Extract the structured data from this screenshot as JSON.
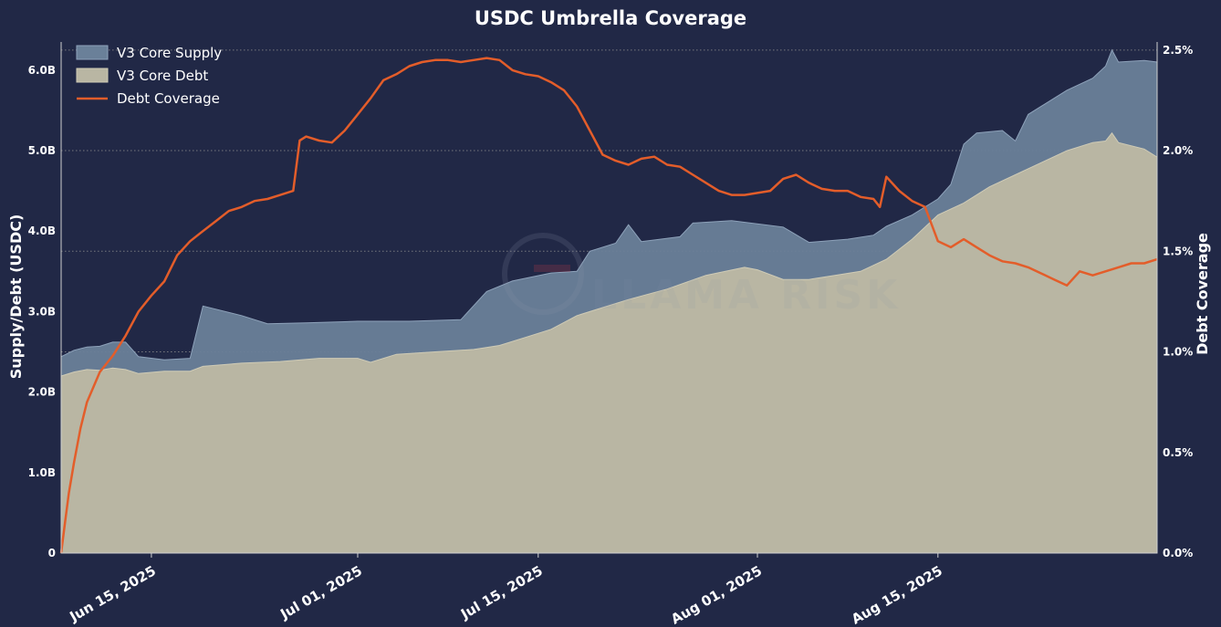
{
  "chart_data": {
    "type": "area",
    "title": "USDC Umbrella Coverage",
    "ylabel": "Supply/Debt (USDC)",
    "y2label": "Debt Coverage",
    "ylim": [
      0,
      6.35
    ],
    "y2lim": [
      0,
      2.54
    ],
    "xlim": [
      "2025-06-08",
      "2025-09-01"
    ],
    "yticks": [
      {
        "value": 0,
        "label": "0"
      },
      {
        "value": 1,
        "label": "1.0B"
      },
      {
        "value": 2,
        "label": "2.0B"
      },
      {
        "value": 3,
        "label": "3.0B"
      },
      {
        "value": 4,
        "label": "4.0B"
      },
      {
        "value": 5,
        "label": "5.0B"
      },
      {
        "value": 6,
        "label": "6.0B"
      }
    ],
    "y2ticks": [
      {
        "value": 0,
        "label": "0.0%"
      },
      {
        "value": 0.5,
        "label": "0.5%"
      },
      {
        "value": 1.0,
        "label": "1.0%"
      },
      {
        "value": 1.5,
        "label": "1.5%"
      },
      {
        "value": 2.0,
        "label": "2.0%"
      },
      {
        "value": 2.5,
        "label": "2.5%"
      }
    ],
    "xticks": [
      {
        "date": "2025-06-15",
        "label": "Jun 15, 2025"
      },
      {
        "date": "2025-07-01",
        "label": "Jul 01, 2025"
      },
      {
        "date": "2025-07-15",
        "label": "Jul 15, 2025"
      },
      {
        "date": "2025-08-01",
        "label": "Aug 01, 2025"
      },
      {
        "date": "2025-08-15",
        "label": "Aug 15, 2025"
      }
    ],
    "grid": "horizontal dotted (right axis)",
    "legend": "top-left",
    "colors": {
      "background": "#212846",
      "supply": "#6a8099",
      "debt": "#b9b6a3",
      "coverage": "#e35d2a"
    },
    "series": [
      {
        "name": "V3 Core Supply",
        "axis": "left",
        "style": "area",
        "points": [
          [
            "2025-06-08",
            2.44
          ],
          [
            "2025-06-09",
            2.52
          ],
          [
            "2025-06-10",
            2.56
          ],
          [
            "2025-06-11",
            2.57
          ],
          [
            "2025-06-12",
            2.62
          ],
          [
            "2025-06-13",
            2.62
          ],
          [
            "2025-06-14",
            2.44
          ],
          [
            "2025-06-16",
            2.4
          ],
          [
            "2025-06-18",
            2.42
          ],
          [
            "2025-06-19",
            3.07
          ],
          [
            "2025-06-22",
            2.95
          ],
          [
            "2025-06-24",
            2.85
          ],
          [
            "2025-06-27",
            2.86
          ],
          [
            "2025-07-01",
            2.88
          ],
          [
            "2025-07-05",
            2.88
          ],
          [
            "2025-07-09",
            2.9
          ],
          [
            "2025-07-11",
            3.25
          ],
          [
            "2025-07-13",
            3.38
          ],
          [
            "2025-07-16",
            3.48
          ],
          [
            "2025-07-18",
            3.5
          ],
          [
            "2025-07-19",
            3.75
          ],
          [
            "2025-07-21",
            3.85
          ],
          [
            "2025-07-22",
            4.08
          ],
          [
            "2025-07-23",
            3.87
          ],
          [
            "2025-07-26",
            3.93
          ],
          [
            "2025-07-27",
            4.1
          ],
          [
            "2025-07-30",
            4.13
          ],
          [
            "2025-08-03",
            4.05
          ],
          [
            "2025-08-05",
            3.86
          ],
          [
            "2025-08-08",
            3.9
          ],
          [
            "2025-08-10",
            3.95
          ],
          [
            "2025-08-11",
            4.06
          ],
          [
            "2025-08-13",
            4.2
          ],
          [
            "2025-08-15",
            4.4
          ],
          [
            "2025-08-16",
            4.58
          ],
          [
            "2025-08-17",
            5.08
          ],
          [
            "2025-08-18",
            5.22
          ],
          [
            "2025-08-20",
            5.25
          ],
          [
            "2025-08-21",
            5.12
          ],
          [
            "2025-08-22",
            5.45
          ],
          [
            "2025-08-23",
            5.55
          ],
          [
            "2025-08-25",
            5.75
          ],
          [
            "2025-08-27",
            5.9
          ],
          [
            "2025-08-28",
            6.05
          ],
          [
            "2025-08-28.5",
            6.25
          ],
          [
            "2025-08-29",
            6.1
          ],
          [
            "2025-08-31",
            6.12
          ],
          [
            "2025-09-01",
            6.1
          ]
        ]
      },
      {
        "name": "V3 Core Debt",
        "axis": "left",
        "style": "area",
        "points": [
          [
            "2025-06-08",
            2.2
          ],
          [
            "2025-06-09",
            2.25
          ],
          [
            "2025-06-10",
            2.28
          ],
          [
            "2025-06-11",
            2.27
          ],
          [
            "2025-06-12",
            2.3
          ],
          [
            "2025-06-13",
            2.28
          ],
          [
            "2025-06-14",
            2.23
          ],
          [
            "2025-06-16",
            2.26
          ],
          [
            "2025-06-18",
            2.26
          ],
          [
            "2025-06-19",
            2.32
          ],
          [
            "2025-06-22",
            2.36
          ],
          [
            "2025-06-25",
            2.38
          ],
          [
            "2025-06-28",
            2.42
          ],
          [
            "2025-07-01",
            2.42
          ],
          [
            "2025-07-02",
            2.37
          ],
          [
            "2025-07-04",
            2.47
          ],
          [
            "2025-07-07",
            2.5
          ],
          [
            "2025-07-10",
            2.53
          ],
          [
            "2025-07-12",
            2.58
          ],
          [
            "2025-07-14",
            2.68
          ],
          [
            "2025-07-16",
            2.78
          ],
          [
            "2025-07-18",
            2.95
          ],
          [
            "2025-07-20",
            3.05
          ],
          [
            "2025-07-22",
            3.15
          ],
          [
            "2025-07-25",
            3.28
          ],
          [
            "2025-07-28",
            3.45
          ],
          [
            "2025-07-31",
            3.55
          ],
          [
            "2025-08-01",
            3.52
          ],
          [
            "2025-08-03",
            3.4
          ],
          [
            "2025-08-05",
            3.4
          ],
          [
            "2025-08-07",
            3.45
          ],
          [
            "2025-08-09",
            3.5
          ],
          [
            "2025-08-11",
            3.65
          ],
          [
            "2025-08-13",
            3.9
          ],
          [
            "2025-08-15",
            4.2
          ],
          [
            "2025-08-17",
            4.35
          ],
          [
            "2025-08-19",
            4.55
          ],
          [
            "2025-08-21",
            4.7
          ],
          [
            "2025-08-23",
            4.85
          ],
          [
            "2025-08-25",
            5.0
          ],
          [
            "2025-08-27",
            5.1
          ],
          [
            "2025-08-28",
            5.12
          ],
          [
            "2025-08-28.5",
            5.22
          ],
          [
            "2025-08-29",
            5.1
          ],
          [
            "2025-08-31",
            5.02
          ],
          [
            "2025-09-01",
            4.92
          ]
        ]
      },
      {
        "name": "Debt Coverage",
        "axis": "right",
        "style": "line",
        "points": [
          [
            "2025-06-08",
            0.0
          ],
          [
            "2025-06-08.3",
            0.15
          ],
          [
            "2025-06-08.6",
            0.3
          ],
          [
            "2025-06-09",
            0.45
          ],
          [
            "2025-06-09.5",
            0.62
          ],
          [
            "2025-06-10",
            0.75
          ],
          [
            "2025-06-11",
            0.9
          ],
          [
            "2025-06-12",
            0.98
          ],
          [
            "2025-06-13",
            1.08
          ],
          [
            "2025-06-14",
            1.2
          ],
          [
            "2025-06-15",
            1.28
          ],
          [
            "2025-06-16",
            1.35
          ],
          [
            "2025-06-17",
            1.48
          ],
          [
            "2025-06-18",
            1.55
          ],
          [
            "2025-06-19",
            1.6
          ],
          [
            "2025-06-20",
            1.65
          ],
          [
            "2025-06-21",
            1.7
          ],
          [
            "2025-06-22",
            1.72
          ],
          [
            "2025-06-23",
            1.75
          ],
          [
            "2025-06-24",
            1.76
          ],
          [
            "2025-06-25",
            1.78
          ],
          [
            "2025-06-26",
            1.8
          ],
          [
            "2025-06-26.5",
            2.05
          ],
          [
            "2025-06-27",
            2.07
          ],
          [
            "2025-06-28",
            2.05
          ],
          [
            "2025-06-29",
            2.04
          ],
          [
            "2025-06-30",
            2.1
          ],
          [
            "2025-07-01",
            2.18
          ],
          [
            "2025-07-02",
            2.26
          ],
          [
            "2025-07-03",
            2.35
          ],
          [
            "2025-07-04",
            2.38
          ],
          [
            "2025-07-05",
            2.42
          ],
          [
            "2025-07-06",
            2.44
          ],
          [
            "2025-07-07",
            2.45
          ],
          [
            "2025-07-08",
            2.45
          ],
          [
            "2025-07-09",
            2.44
          ],
          [
            "2025-07-10",
            2.45
          ],
          [
            "2025-07-11",
            2.46
          ],
          [
            "2025-07-12",
            2.45
          ],
          [
            "2025-07-13",
            2.4
          ],
          [
            "2025-07-14",
            2.38
          ],
          [
            "2025-07-15",
            2.37
          ],
          [
            "2025-07-16",
            2.34
          ],
          [
            "2025-07-17",
            2.3
          ],
          [
            "2025-07-18",
            2.22
          ],
          [
            "2025-07-19",
            2.1
          ],
          [
            "2025-07-20",
            1.98
          ],
          [
            "2025-07-21",
            1.95
          ],
          [
            "2025-07-22",
            1.93
          ],
          [
            "2025-07-23",
            1.96
          ],
          [
            "2025-07-24",
            1.97
          ],
          [
            "2025-07-25",
            1.93
          ],
          [
            "2025-07-26",
            1.92
          ],
          [
            "2025-07-27",
            1.88
          ],
          [
            "2025-07-28",
            1.84
          ],
          [
            "2025-07-29",
            1.8
          ],
          [
            "2025-07-30",
            1.78
          ],
          [
            "2025-07-31",
            1.78
          ],
          [
            "2025-08-01",
            1.79
          ],
          [
            "2025-08-02",
            1.8
          ],
          [
            "2025-08-03",
            1.86
          ],
          [
            "2025-08-04",
            1.88
          ],
          [
            "2025-08-05",
            1.84
          ],
          [
            "2025-08-06",
            1.81
          ],
          [
            "2025-08-07",
            1.8
          ],
          [
            "2025-08-08",
            1.8
          ],
          [
            "2025-08-09",
            1.77
          ],
          [
            "2025-08-10",
            1.76
          ],
          [
            "2025-08-10.5",
            1.72
          ],
          [
            "2025-08-11",
            1.87
          ],
          [
            "2025-08-12",
            1.8
          ],
          [
            "2025-08-13",
            1.75
          ],
          [
            "2025-08-14",
            1.72
          ],
          [
            "2025-08-15",
            1.55
          ],
          [
            "2025-08-16",
            1.52
          ],
          [
            "2025-08-17",
            1.56
          ],
          [
            "2025-08-18",
            1.52
          ],
          [
            "2025-08-19",
            1.48
          ],
          [
            "2025-08-20",
            1.45
          ],
          [
            "2025-08-21",
            1.44
          ],
          [
            "2025-08-22",
            1.42
          ],
          [
            "2025-08-23",
            1.39
          ],
          [
            "2025-08-24",
            1.36
          ],
          [
            "2025-08-25",
            1.33
          ],
          [
            "2025-08-26",
            1.4
          ],
          [
            "2025-08-27",
            1.38
          ],
          [
            "2025-08-28",
            1.4
          ],
          [
            "2025-08-29",
            1.42
          ],
          [
            "2025-08-30",
            1.44
          ],
          [
            "2025-08-31",
            1.44
          ],
          [
            "2025-09-01",
            1.46
          ]
        ]
      }
    ],
    "watermark": "LLAMA RISK"
  }
}
